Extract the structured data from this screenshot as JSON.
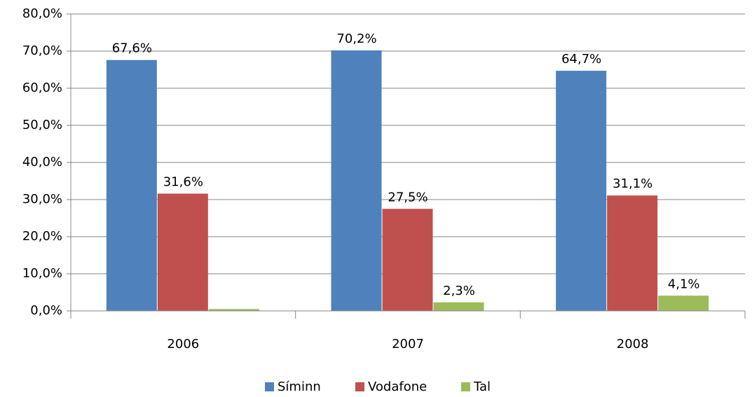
{
  "chart_data": {
    "type": "bar",
    "categories": [
      "2006",
      "2007",
      "2008"
    ],
    "series": [
      {
        "name": "Síminn",
        "color": "#4f81bd",
        "values": [
          67.6,
          70.2,
          64.7
        ],
        "value_labels": [
          "67,6%",
          "70,2%",
          "64,7%"
        ]
      },
      {
        "name": "Vodafone",
        "color": "#c0504d",
        "values": [
          31.6,
          27.5,
          31.1
        ],
        "value_labels": [
          "31,6%",
          "27,5%",
          "31,1%"
        ]
      },
      {
        "name": "Tal",
        "color": "#9bbb59",
        "values": [
          0.5,
          2.3,
          4.1
        ],
        "value_labels": [
          null,
          "2,3%",
          "4,1%"
        ]
      }
    ],
    "ylim": [
      0,
      80
    ],
    "yticks": [
      {
        "value": 0,
        "label": "0,0%"
      },
      {
        "value": 10,
        "label": "10,0%"
      },
      {
        "value": 20,
        "label": "20,0%"
      },
      {
        "value": 30,
        "label": "30,0%"
      },
      {
        "value": 40,
        "label": "40,0%"
      },
      {
        "value": 50,
        "label": "50,0%"
      },
      {
        "value": 60,
        "label": "60,0%"
      },
      {
        "value": 70,
        "label": "70,0%"
      },
      {
        "value": 80,
        "label": "80,0%"
      }
    ],
    "grid": true,
    "legend": "bottom"
  }
}
